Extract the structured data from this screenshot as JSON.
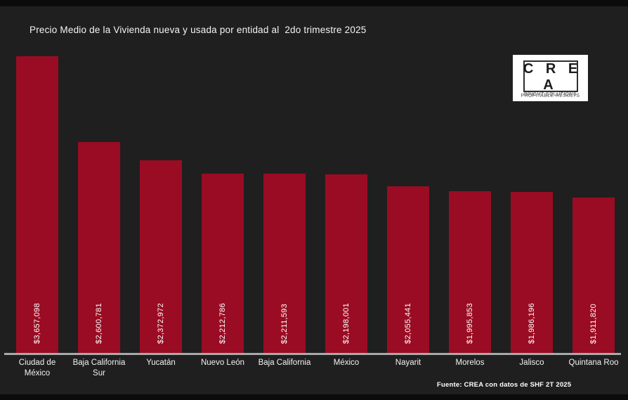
{
  "title": "Precio Medio de la Vivienda nueva y usada por entidad al  2do trimestre 2025",
  "logo": {
    "name": "C R E A",
    "tagline1": "BRIGHT SOLUTIONS",
    "tagline2": "PROFITABLE RESULTS"
  },
  "source": "Fuente: CREA con datos de SHF 2T 2025",
  "colors": {
    "background": "#1f1f1f",
    "bar": "#9a0c23",
    "text": "#ffffff",
    "axis_line": "#a9a9a9"
  },
  "chart_data": {
    "type": "bar",
    "title": "Precio Medio de la Vivienda nueva y usada por entidad al  2do trimestre 2025",
    "categories": [
      "Ciudad de México",
      "Baja California Sur",
      "Yucatán",
      "Nuevo León",
      "Baja California",
      "México",
      "Nayarit",
      "Morelos",
      "Jalisco",
      "Quintana Roo"
    ],
    "values": [
      3657098,
      2600781,
      2372972,
      2212786,
      2211593,
      2198001,
      2055441,
      1995853,
      1986196,
      1911820
    ],
    "value_labels": [
      "$3,657,098",
      "$2,600,781",
      "$2,372,972",
      "$2,212,786",
      "$2,211,593",
      "$2,198,001",
      "$2,055,441",
      "$1,995,853",
      "$1,986,196",
      "$1,911,820"
    ],
    "xlabel": "",
    "ylabel": "",
    "ylim": [
      0,
      3657098
    ],
    "grid": false,
    "legend": false,
    "bar_color": "#9a0c23",
    "value_label_rotation": 90,
    "orientation": "vertical"
  }
}
